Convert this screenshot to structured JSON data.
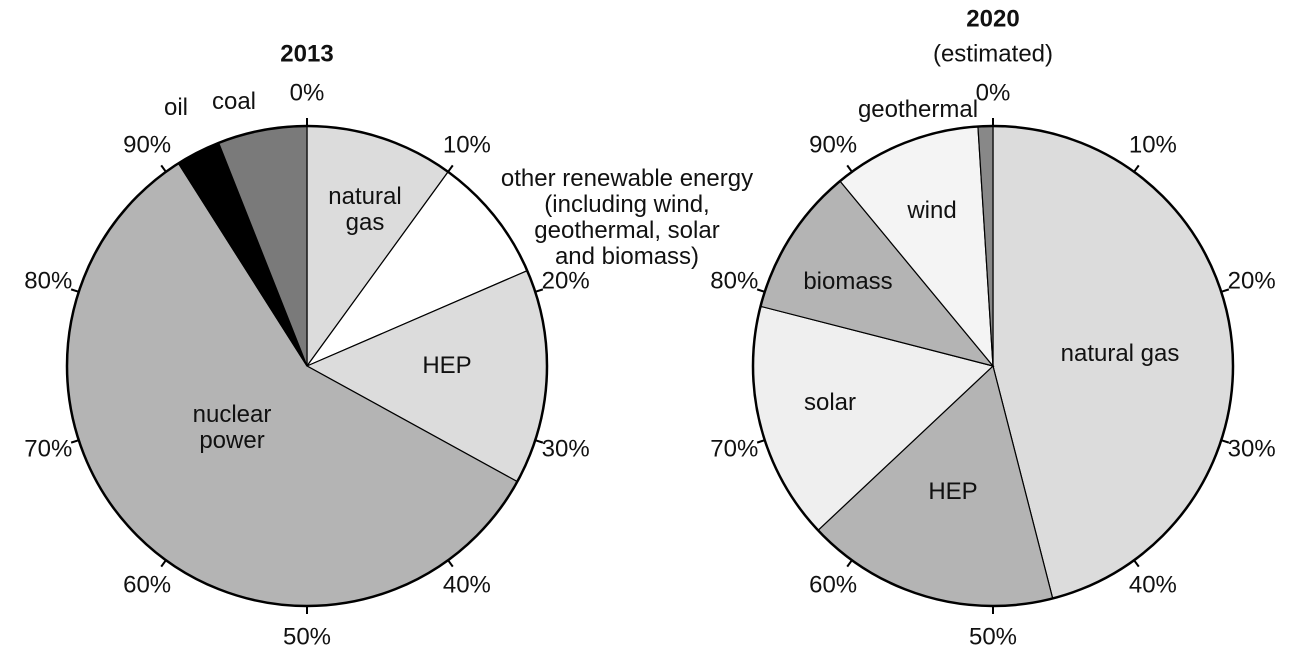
{
  "chart_data": [
    {
      "type": "pie",
      "title": "2013",
      "categories": [
        "natural\ngas",
        "other renewable energy\n(including wind,\ngeothermal, solar\nand biomass)",
        "HEP",
        "nuclear\npower",
        "oil",
        "coal"
      ],
      "values": [
        10,
        8.5,
        14.5,
        58,
        3,
        6
      ],
      "colors": [
        "#dcdcdc",
        "#ffffff",
        "#dcdcdc",
        "#b4b4b4",
        "#000000",
        "#7a7a7a"
      ],
      "ticks": [
        {
          "value": 0,
          "label": "0%"
        },
        {
          "value": 10,
          "label": "10%"
        },
        {
          "value": 20,
          "label": "20%"
        },
        {
          "value": 30,
          "label": "30%"
        },
        {
          "value": 40,
          "label": "40%"
        },
        {
          "value": 50,
          "label": "50%"
        },
        {
          "value": 60,
          "label": "60%"
        },
        {
          "value": 70,
          "label": "70%"
        },
        {
          "value": 80,
          "label": "80%"
        },
        {
          "value": 90,
          "label": "90%"
        }
      ]
    },
    {
      "type": "pie",
      "title": "2020",
      "subtitle": "(estimated)",
      "categories": [
        "natural gas",
        "HEP",
        "solar",
        "biomass",
        "wind",
        "geothermal"
      ],
      "values": [
        46,
        17,
        16,
        10,
        10,
        1
      ],
      "colors": [
        "#dcdcdc",
        "#b4b4b4",
        "#efefef",
        "#b4b4b4",
        "#f4f4f4",
        "#888888"
      ],
      "ticks": [
        {
          "value": 0,
          "label": "0%"
        },
        {
          "value": 10,
          "label": "10%"
        },
        {
          "value": 20,
          "label": "20%"
        },
        {
          "value": 30,
          "label": "30%"
        },
        {
          "value": 40,
          "label": "40%"
        },
        {
          "value": 50,
          "label": "50%"
        },
        {
          "value": 60,
          "label": "60%"
        },
        {
          "value": 70,
          "label": "70%"
        },
        {
          "value": 80,
          "label": "80%"
        },
        {
          "value": 90,
          "label": "90%"
        }
      ]
    }
  ]
}
